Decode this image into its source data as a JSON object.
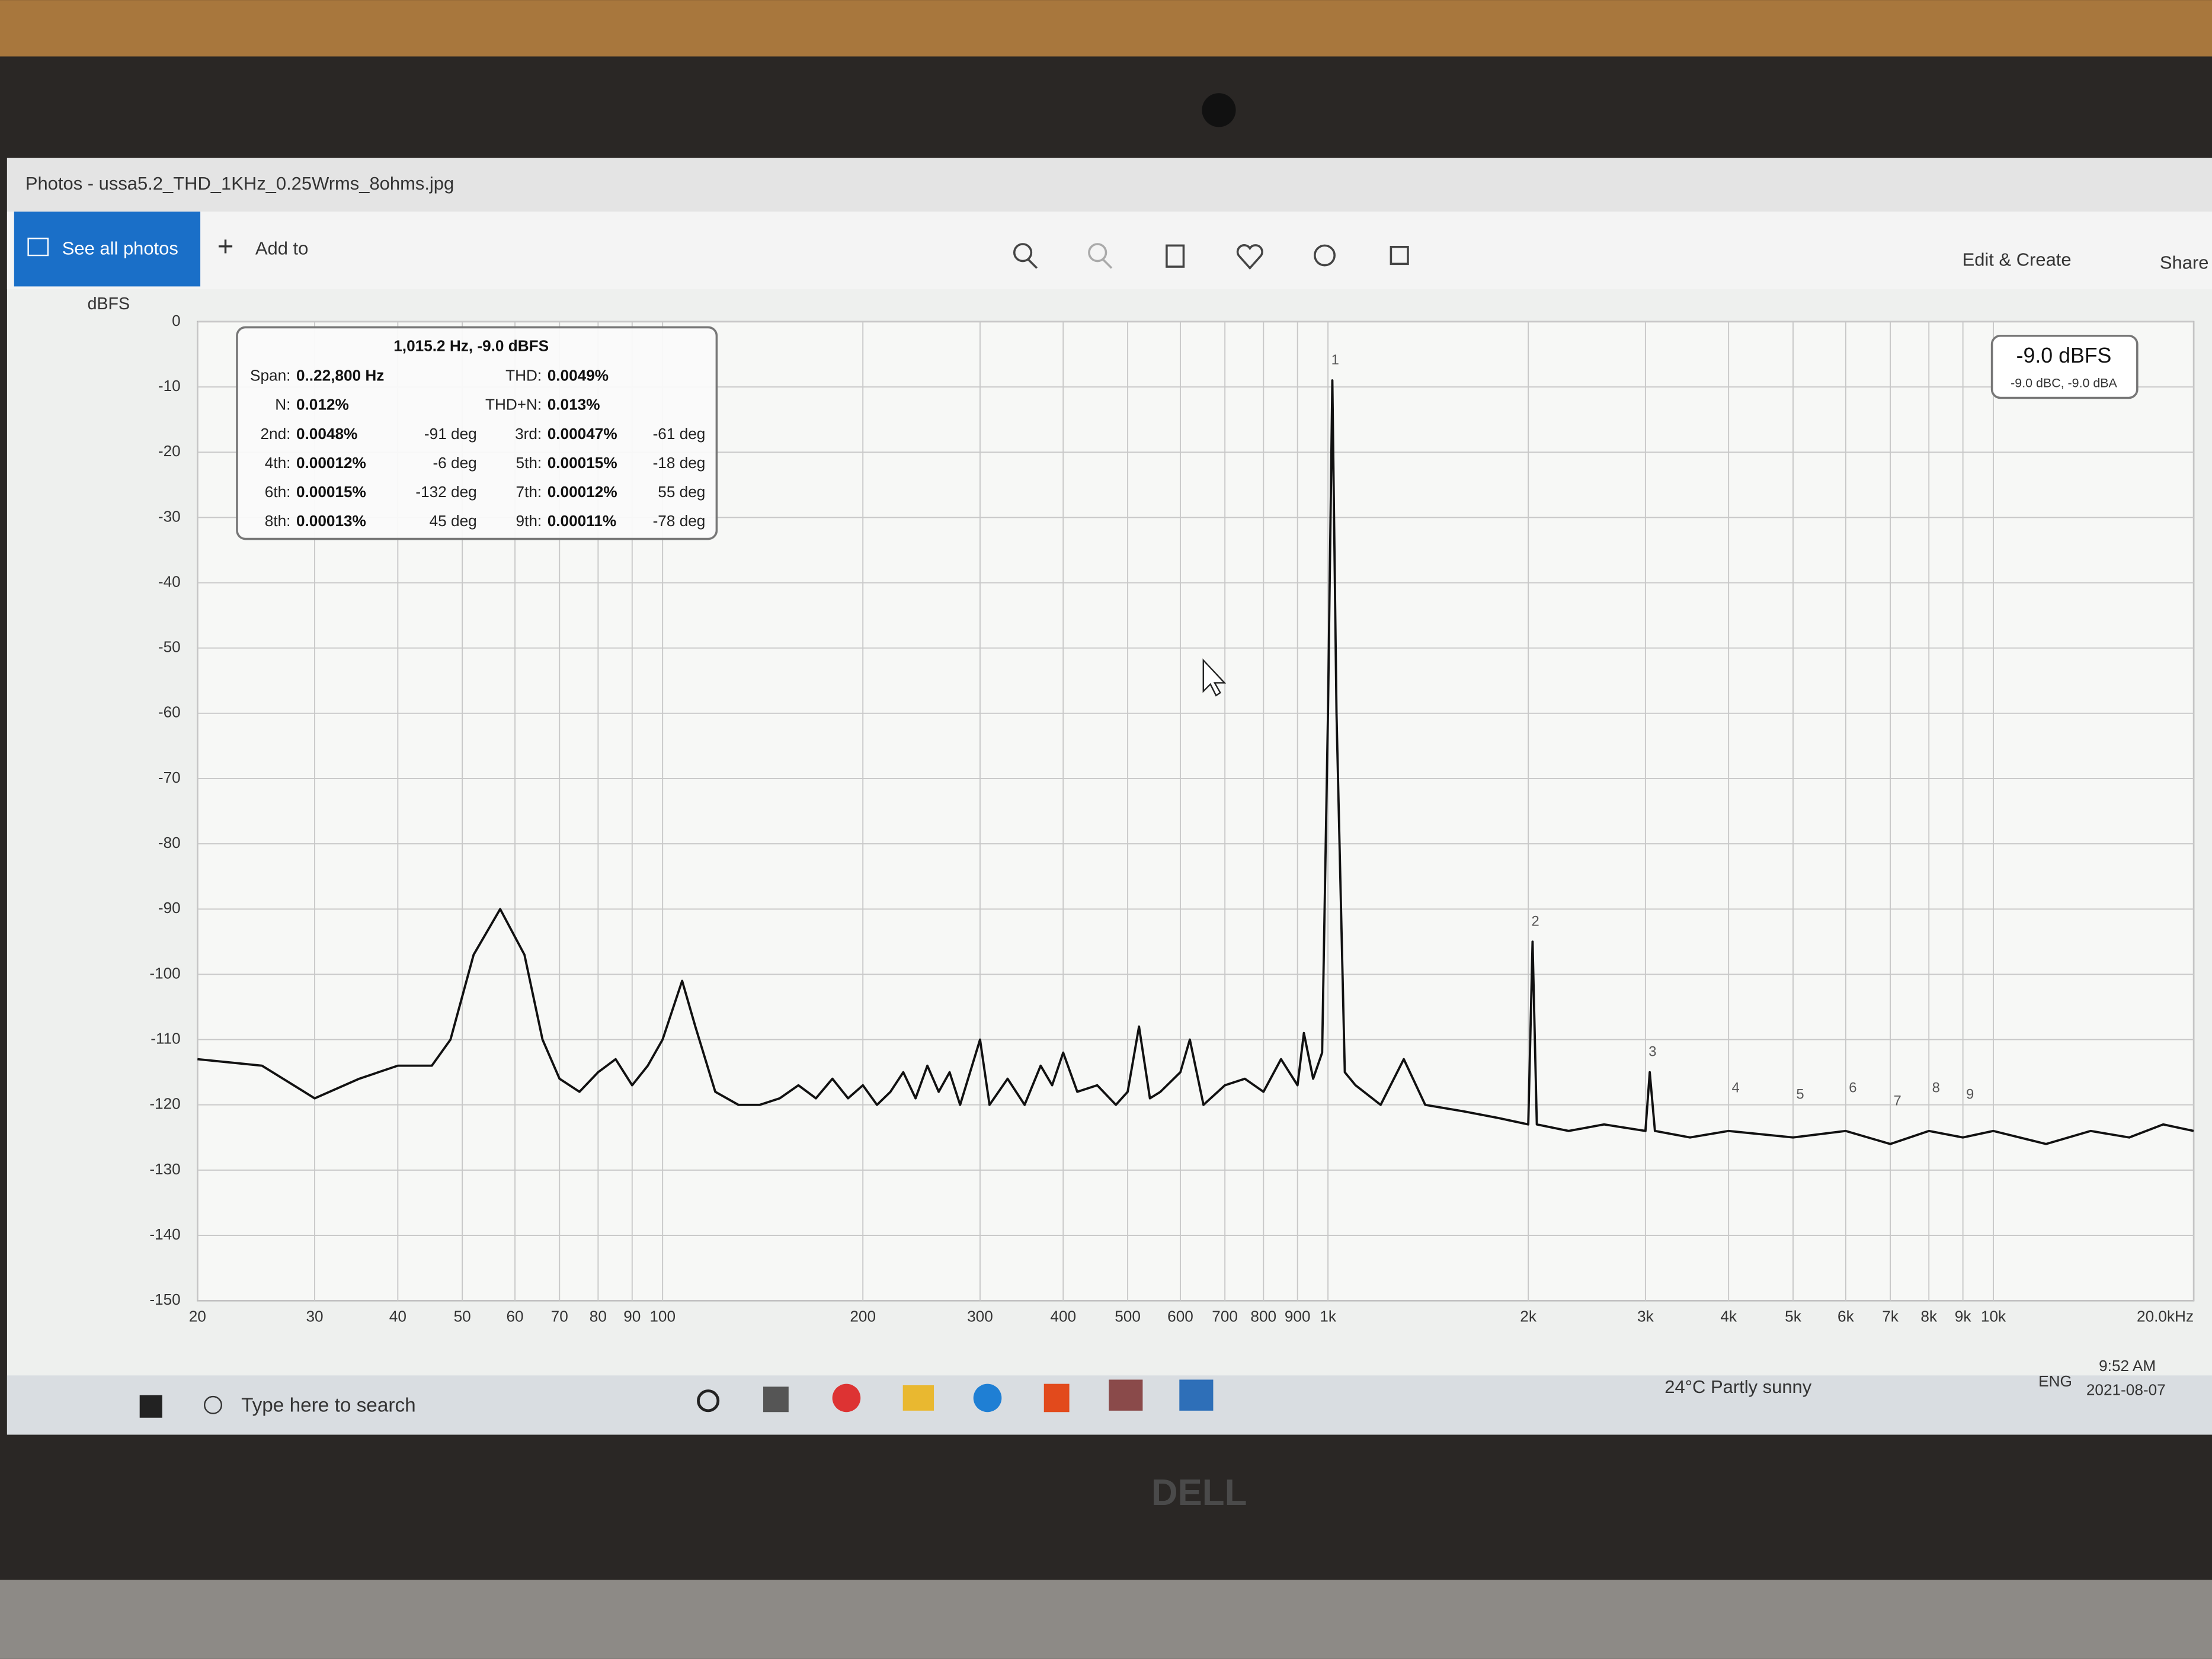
{
  "window": {
    "title": "Photos - ussa5.2_THD_1KHz_0.25Wrms_8ohms.jpg"
  },
  "toolbar": {
    "see_all": "See all photos",
    "add_to": "Add to",
    "edit_create": "Edit & Create",
    "share": "Share"
  },
  "chart_data": {
    "type": "line",
    "y_label": "dBFS",
    "log_x": true,
    "grid": true,
    "color": "#111111",
    "xlim": [
      20,
      20000
    ],
    "ylim": [
      -150,
      0
    ],
    "yticks": [
      0,
      -10,
      -20,
      -30,
      -40,
      -50,
      -60,
      -70,
      -80,
      -90,
      -100,
      -110,
      -120,
      -130,
      -140,
      -150
    ],
    "xticks": [
      20,
      30,
      40,
      50,
      60,
      70,
      80,
      90,
      100,
      200,
      300,
      400,
      500,
      600,
      700,
      800,
      900,
      {
        "value": 1000,
        "label": "1k"
      },
      {
        "value": 2000,
        "label": "2k"
      },
      {
        "value": 3000,
        "label": "3k"
      },
      {
        "value": 4000,
        "label": "4k"
      },
      {
        "value": 5000,
        "label": "5k"
      },
      {
        "value": 6000,
        "label": "6k"
      },
      {
        "value": 7000,
        "label": "7k"
      },
      {
        "value": 8000,
        "label": "8k"
      },
      {
        "value": 9000,
        "label": "9k"
      },
      {
        "value": 10000,
        "label": "10k"
      },
      {
        "value": 20000,
        "label": "20.0kHz"
      }
    ],
    "x": [
      20,
      25,
      30,
      35,
      40,
      45,
      48,
      52,
      57,
      62,
      66,
      70,
      75,
      80,
      85,
      90,
      95,
      100,
      107,
      112,
      120,
      130,
      140,
      150,
      160,
      170,
      180,
      190,
      200,
      210,
      220,
      230,
      240,
      250,
      260,
      270,
      280,
      300,
      310,
      330,
      350,
      370,
      385,
      400,
      420,
      450,
      480,
      500,
      520,
      540,
      560,
      600,
      620,
      650,
      700,
      750,
      800,
      850,
      900,
      920,
      950,
      980,
      1000,
      1015.2,
      1030,
      1060,
      1100,
      1200,
      1300,
      1400,
      1600,
      1800,
      2000,
      2030,
      2060,
      2300,
      2600,
      3000,
      3045,
      3100,
      3500,
      4000,
      5000,
      6000,
      7000,
      8000,
      9000,
      10000,
      12000,
      14000,
      16000,
      18000,
      20000
    ],
    "values": [
      -113,
      -114,
      -119,
      -116,
      -114,
      -114,
      -110,
      -97,
      -90,
      -97,
      -110,
      -116,
      -118,
      -115,
      -113,
      -117,
      -114,
      -110,
      -101,
      -108,
      -118,
      -120,
      -120,
      -119,
      -117,
      -119,
      -116,
      -119,
      -117,
      -120,
      -118,
      -115,
      -119,
      -114,
      -118,
      -115,
      -120,
      -110,
      -120,
      -116,
      -120,
      -114,
      -117,
      -112,
      -118,
      -117,
      -120,
      -118,
      -108,
      -119,
      -118,
      -115,
      -110,
      -120,
      -117,
      -116,
      -118,
      -113,
      -117,
      -109,
      -116,
      -112,
      -60,
      -9,
      -60,
      -115,
      -117,
      -120,
      -113,
      -120,
      -121,
      -122,
      -123,
      -95,
      -123,
      -124,
      -123,
      -124,
      -115,
      -124,
      -125,
      -124,
      -125,
      -124,
      -126,
      -124,
      -125,
      -124,
      -126,
      -124,
      -125,
      -123,
      -124
    ],
    "harmonics": [
      {
        "label": "1",
        "x": 1015.2
      },
      {
        "label": "2",
        "x": 2030
      },
      {
        "label": "3",
        "x": 3045
      },
      {
        "label": "4",
        "x": 4060
      },
      {
        "label": "5",
        "x": 5075
      },
      {
        "label": "6",
        "x": 6090
      },
      {
        "label": "7",
        "x": 7105
      },
      {
        "label": "8",
        "x": 8120
      },
      {
        "label": "9",
        "x": 9135
      }
    ],
    "peak_box": {
      "main": "-9.0 dBFS",
      "sub": "-9.0 dBC, -9.0 dBA"
    },
    "info_box": {
      "title": "1,015.2 Hz, -9.0 dBFS",
      "left": [
        {
          "label": "Span:",
          "value": "0..22,800 Hz"
        },
        {
          "label": "N:",
          "value": "0.012%"
        },
        {
          "label": "2nd:",
          "value": "0.0048%",
          "phase": "-91 deg"
        },
        {
          "label": "4th:",
          "value": "0.00012%",
          "phase": "-6 deg"
        },
        {
          "label": "6th:",
          "value": "0.00015%",
          "phase": "-132 deg"
        },
        {
          "label": "8th:",
          "value": "0.00013%",
          "phase": "45 deg"
        }
      ],
      "right": [
        {
          "label": "THD:",
          "value": "0.0049%"
        },
        {
          "label": "THD+N:",
          "value": "0.013%"
        },
        {
          "label": "3rd:",
          "value": "0.00047%",
          "phase": "-61 deg"
        },
        {
          "label": "5th:",
          "value": "0.00015%",
          "phase": "-18 deg"
        },
        {
          "label": "7th:",
          "value": "0.00012%",
          "phase": "55 deg"
        },
        {
          "label": "9th:",
          "value": "0.00011%",
          "phase": "-78 deg"
        }
      ]
    }
  },
  "taskbar": {
    "search": "Type here to search",
    "weather": "24°C  Partly sunny",
    "lang": "ENG",
    "time": "9:52 AM",
    "date": "2021-08-07"
  },
  "bezel": {
    "brand": "DELL"
  }
}
